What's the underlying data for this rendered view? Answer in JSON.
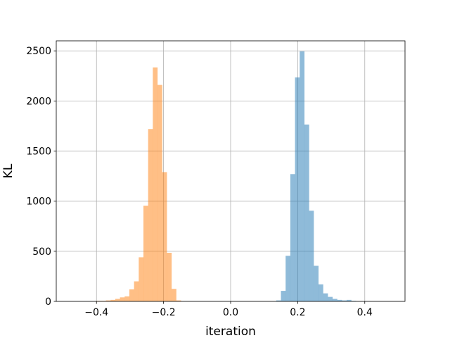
{
  "chart_data": {
    "type": "histogram",
    "xlabel": "iteration",
    "ylabel": "KL",
    "xlim": [
      -0.52,
      0.52
    ],
    "ylim": [
      0,
      2600
    ],
    "grid": true,
    "xticks": [
      -0.4,
      -0.2,
      0.0,
      0.2,
      0.4
    ],
    "xtick_labels": [
      "−0.4",
      "−0.2",
      "0.0",
      "0.2",
      "0.4"
    ],
    "yticks": [
      0,
      500,
      1000,
      1500,
      2000,
      2500
    ],
    "ytick_labels": [
      "0",
      "500",
      "1000",
      "1500",
      "2000",
      "2500"
    ],
    "bin_width": 0.0142,
    "series": [
      {
        "color": "#1f77b4",
        "alpha": 0.5,
        "bins": [
          {
            "x0": 0.136,
            "count": 10
          },
          {
            "x0": 0.15,
            "count": 105
          },
          {
            "x0": 0.164,
            "count": 455
          },
          {
            "x0": 0.178,
            "count": 1270
          },
          {
            "x0": 0.192,
            "count": 2235
          },
          {
            "x0": 0.206,
            "count": 2495
          },
          {
            "x0": 0.22,
            "count": 1765
          },
          {
            "x0": 0.234,
            "count": 905
          },
          {
            "x0": 0.248,
            "count": 355
          },
          {
            "x0": 0.262,
            "count": 170
          },
          {
            "x0": 0.276,
            "count": 80
          },
          {
            "x0": 0.29,
            "count": 45
          },
          {
            "x0": 0.304,
            "count": 25
          },
          {
            "x0": 0.318,
            "count": 15
          },
          {
            "x0": 0.332,
            "count": 10
          },
          {
            "x0": 0.346,
            "count": 15
          },
          {
            "x0": 0.36,
            "count": 5
          }
        ]
      },
      {
        "color": "#ff7f0e",
        "alpha": 0.5,
        "bins": [
          {
            "x0": -0.4,
            "count": 5
          },
          {
            "x0": -0.386,
            "count": 5
          },
          {
            "x0": -0.372,
            "count": 10
          },
          {
            "x0": -0.358,
            "count": 15
          },
          {
            "x0": -0.344,
            "count": 25
          },
          {
            "x0": -0.33,
            "count": 40
          },
          {
            "x0": -0.316,
            "count": 50
          },
          {
            "x0": -0.302,
            "count": 120
          },
          {
            "x0": -0.288,
            "count": 200
          },
          {
            "x0": -0.274,
            "count": 440
          },
          {
            "x0": -0.26,
            "count": 955
          },
          {
            "x0": -0.246,
            "count": 1720
          },
          {
            "x0": -0.232,
            "count": 2335
          },
          {
            "x0": -0.218,
            "count": 2160
          },
          {
            "x0": -0.204,
            "count": 1290
          },
          {
            "x0": -0.19,
            "count": 485
          },
          {
            "x0": -0.176,
            "count": 125
          },
          {
            "x0": -0.162,
            "count": 10
          }
        ]
      }
    ]
  }
}
